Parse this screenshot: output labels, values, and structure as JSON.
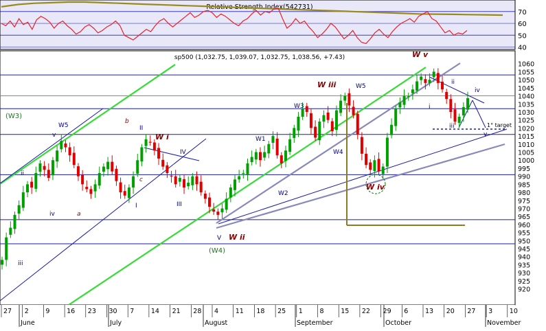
{
  "chart_data": [
    {
      "type": "line",
      "title": "Relative Strength Index(542731)",
      "ylim": [
        38,
        78
      ],
      "yticks": [
        40,
        50,
        60,
        70
      ],
      "series": [
        {
          "values": [
            60,
            58,
            62,
            57,
            64,
            59,
            61,
            55,
            63,
            66,
            64,
            61,
            56,
            60,
            62,
            58,
            55,
            51,
            53,
            57,
            59,
            56,
            52,
            54,
            57,
            59,
            62,
            58,
            50,
            48,
            46,
            49,
            52,
            55,
            53,
            58,
            62,
            64,
            60,
            57,
            60,
            63,
            66,
            69,
            65,
            67,
            70,
            71,
            69,
            65,
            68,
            66,
            63,
            60,
            58,
            62,
            64,
            68,
            71,
            67,
            70,
            69,
            72,
            73,
            64,
            56,
            59,
            64,
            60,
            62,
            57,
            53,
            48,
            51,
            55,
            60,
            57,
            52,
            47,
            50,
            54,
            48,
            44,
            43,
            47,
            52,
            55,
            51,
            48,
            53,
            57,
            60,
            62,
            64,
            61,
            66,
            68,
            70,
            64,
            62,
            57,
            52,
            54,
            50,
            52,
            51,
            54
          ]
        },
        {
          "values": [
            74,
            76,
            77,
            77.5,
            78,
            78,
            77.5,
            77,
            76.5,
            76,
            75.5,
            75,
            74.5,
            74,
            73.5,
            73,
            72.5,
            72,
            71.5,
            71,
            70.5,
            70,
            69.5,
            69,
            68.5,
            68,
            67.8,
            67.6,
            67.4,
            67.2,
            67
          ]
        }
      ],
      "colors": {
        "rsi": "#e8202a",
        "average": "#9a8a1c",
        "panel_bg": "#e8e8f8"
      }
    },
    {
      "type": "candlestick",
      "title": "sp500 (1,032.75, 1,039.07, 1,032.75, 1,038.56, +7.43)",
      "ylim": [
        910,
        1068
      ],
      "yticks": [
        920,
        925,
        930,
        935,
        940,
        945,
        950,
        955,
        960,
        965,
        970,
        975,
        980,
        985,
        990,
        995,
        1000,
        1005,
        1010,
        1015,
        1020,
        1025,
        1030,
        1035,
        1040,
        1045,
        1050,
        1055,
        1060
      ],
      "x_ticks": [
        "27",
        "2",
        "9",
        "16",
        "23",
        "30",
        "7",
        "14",
        "21",
        "28",
        "4",
        "11",
        "18",
        "25",
        "1",
        "8",
        "15",
        "22",
        "29",
        "6",
        "13",
        "20",
        "27",
        "3",
        "10"
      ],
      "months": [
        "June",
        "July",
        "August",
        "September",
        "October",
        "November"
      ],
      "series": [
        {
          "name": "close",
          "values": [
            938,
            952,
            958,
            966,
            972,
            980,
            985,
            983,
            992,
            998,
            994,
            989,
            1000,
            1006,
            1012,
            1008,
            1003,
            997,
            990,
            985,
            982,
            979,
            985,
            992,
            996,
            999,
            993,
            987,
            980,
            978,
            983,
            990,
            1000,
            1008,
            1013,
            1011,
            1006,
            1001,
            996,
            992,
            990,
            985,
            989,
            983,
            986,
            990,
            985,
            980,
            976,
            971,
            968,
            966,
            970,
            976,
            983,
            988,
            990,
            992,
            998,
            1002,
            1005,
            1000,
            1005,
            1010,
            1015,
            1003,
            998,
            1006,
            1013,
            1020,
            1027,
            1032,
            1030,
            1020,
            1014,
            1024,
            1028,
            1025,
            1018,
            1031,
            1037,
            1040,
            1034,
            1028,
            1016,
            1004,
            997,
            994,
            1000,
            993,
            996,
            1014,
            1022,
            1032,
            1036,
            1040,
            1040,
            1044,
            1049,
            1052,
            1048,
            1050,
            1055,
            1048,
            1044,
            1038,
            1030,
            1024,
            1027,
            1033,
            1038.56
          ]
        }
      ],
      "annotations": [
        "(W3)",
        "W5",
        "v",
        "ii",
        "iii",
        "iv",
        "b",
        "II",
        "a",
        "c",
        "I",
        "W i",
        "IV",
        "III",
        "(W4)",
        "V",
        "W ii",
        "W1",
        "W2",
        "W3",
        "W iii",
        "W4",
        "W5",
        "W iv",
        "W v",
        "i",
        "ii",
        "iii",
        "iv",
        "v",
        "1° target"
      ],
      "key_levels": [
        1053,
        1040,
        1032,
        1016,
        991,
        963,
        948
      ],
      "colors": {
        "bull": "#00a000",
        "bear": "#e00000",
        "channel_green": "#33dd33",
        "channel_grey": "#8888bb",
        "trend_blue": "#1a1aa8",
        "box": "#8a7a20",
        "label_wave": "#880000",
        "label_minor": "#000088"
      }
    }
  ]
}
